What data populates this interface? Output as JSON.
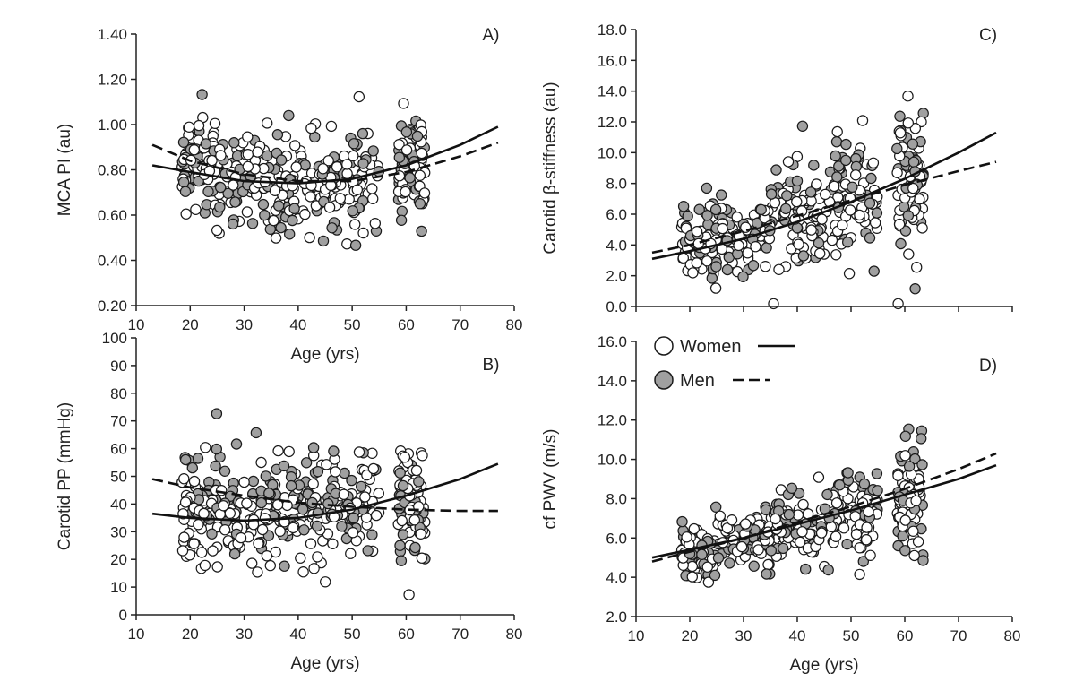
{
  "colors": {
    "women": "#ffffff",
    "men": "#a0a0a0",
    "stroke": "#1a1a1a"
  },
  "legend": [
    {
      "label": "Women",
      "marker": "open-circle",
      "line": "solid"
    },
    {
      "label": "Men",
      "marker": "gray-circle",
      "line": "dashed"
    }
  ],
  "chart_data": [
    {
      "id": "A",
      "panel_label": "A)",
      "type": "scatter",
      "xlabel": "Age (yrs)",
      "ylabel": "MCA PI (au)",
      "xlim": [
        10,
        80
      ],
      "ylim": [
        0.2,
        1.4
      ],
      "xticks": [
        "10",
        "20",
        "30",
        "40",
        "50",
        "60",
        "70",
        "80"
      ],
      "yticks": [
        "0.20",
        "0.40",
        "0.60",
        "0.80",
        "1.00",
        "1.20",
        "1.40"
      ],
      "series": [
        {
          "name": "Women",
          "marker": "open",
          "n": 260,
          "cluster_ranges": [
            [
              18,
              25
            ],
            [
              25,
              35
            ],
            [
              35,
              45
            ],
            [
              45,
              55
            ],
            [
              55,
              65
            ]
          ],
          "y_center": [
            0.82,
            0.78,
            0.74,
            0.76,
            0.84
          ],
          "y_spread": [
            0.09,
            0.1,
            0.1,
            0.11,
            0.11
          ]
        },
        {
          "name": "Men",
          "marker": "filled",
          "n": 170,
          "cluster_ranges": [
            [
              18,
              25
            ],
            [
              25,
              35
            ],
            [
              35,
              45
            ],
            [
              45,
              55
            ],
            [
              55,
              65
            ]
          ],
          "y_center": [
            0.82,
            0.78,
            0.74,
            0.76,
            0.82
          ],
          "y_spread": [
            0.11,
            0.11,
            0.11,
            0.12,
            0.11
          ]
        }
      ],
      "fits": [
        {
          "name": "Women",
          "style": "solid",
          "x": [
            13,
            20,
            30,
            40,
            50,
            60,
            70,
            77
          ],
          "y": [
            0.82,
            0.79,
            0.75,
            0.74,
            0.76,
            0.82,
            0.91,
            0.99
          ]
        },
        {
          "name": "Men",
          "style": "dashed",
          "x": [
            13,
            20,
            30,
            40,
            50,
            60,
            70,
            77
          ],
          "y": [
            0.91,
            0.84,
            0.78,
            0.75,
            0.75,
            0.79,
            0.86,
            0.92
          ]
        }
      ]
    },
    {
      "id": "B",
      "panel_label": "B)",
      "type": "scatter",
      "xlabel": "Age (yrs)",
      "ylabel": "Carotid PP (mmHg)",
      "xlim": [
        10,
        80
      ],
      "ylim": [
        0,
        100
      ],
      "xticks": [
        "10",
        "20",
        "30",
        "40",
        "50",
        "60",
        "70",
        "80"
      ],
      "yticks": [
        "0",
        "10",
        "20",
        "30",
        "40",
        "50",
        "60",
        "70",
        "80",
        "90",
        "100"
      ],
      "series": [
        {
          "name": "Women",
          "marker": "open",
          "n": 260,
          "cluster_ranges": [
            [
              18,
              25
            ],
            [
              25,
              35
            ],
            [
              35,
              45
            ],
            [
              45,
              55
            ],
            [
              55,
              65
            ]
          ],
          "y_center": [
            37,
            35,
            35,
            38,
            41
          ],
          "y_spread": [
            8,
            8,
            9,
            10,
            10
          ]
        },
        {
          "name": "Men",
          "marker": "filled",
          "n": 170,
          "cluster_ranges": [
            [
              18,
              25
            ],
            [
              25,
              35
            ],
            [
              35,
              45
            ],
            [
              45,
              55
            ],
            [
              55,
              65
            ]
          ],
          "y_center": [
            45,
            42,
            40,
            40,
            38
          ],
          "y_spread": [
            9,
            9,
            9,
            10,
            10
          ]
        }
      ],
      "fits": [
        {
          "name": "Women",
          "style": "solid",
          "x": [
            13,
            20,
            30,
            40,
            50,
            60,
            70,
            77
          ],
          "y": [
            36.5,
            35,
            34,
            35,
            38,
            43,
            49,
            54.5
          ]
        },
        {
          "name": "Men",
          "style": "dashed",
          "x": [
            13,
            20,
            30,
            40,
            50,
            60,
            70,
            77
          ],
          "y": [
            49,
            46,
            43,
            40.5,
            39,
            38,
            37.5,
            37.5
          ]
        }
      ]
    },
    {
      "id": "C",
      "panel_label": "C)",
      "type": "scatter",
      "xlabel": "",
      "ylabel": "Carotid β-stiffness (au)",
      "xlim": [
        10,
        80
      ],
      "ylim": [
        0,
        18
      ],
      "xticks": [],
      "yticks": [
        "0.0",
        "2.0",
        "4.0",
        "6.0",
        "8.0",
        "10.0",
        "12.0",
        "14.0",
        "16.0",
        "18.0"
      ],
      "series": [
        {
          "name": "Women",
          "marker": "open",
          "n": 260,
          "cluster_ranges": [
            [
              18,
              25
            ],
            [
              25,
              35
            ],
            [
              35,
              45
            ],
            [
              45,
              55
            ],
            [
              55,
              65
            ]
          ],
          "y_center": [
            3.8,
            4.3,
            5.5,
            7.0,
            8.3
          ],
          "y_spread": [
            1.0,
            1.2,
            1.6,
            2.0,
            2.6
          ]
        },
        {
          "name": "Men",
          "marker": "filled",
          "n": 170,
          "cluster_ranges": [
            [
              18,
              25
            ],
            [
              25,
              35
            ],
            [
              35,
              45
            ],
            [
              45,
              55
            ],
            [
              55,
              65
            ]
          ],
          "y_center": [
            4.5,
            5.0,
            6.2,
            7.3,
            8.5
          ],
          "y_spread": [
            1.1,
            1.3,
            1.6,
            2.0,
            2.6
          ]
        }
      ],
      "fits": [
        {
          "name": "Women",
          "style": "solid",
          "x": [
            13,
            20,
            30,
            40,
            50,
            60,
            70,
            77
          ],
          "y": [
            3.1,
            3.6,
            4.4,
            5.5,
            6.8,
            8.3,
            10.0,
            11.3
          ]
        },
        {
          "name": "Men",
          "style": "dashed",
          "x": [
            13,
            20,
            30,
            40,
            50,
            60,
            70,
            77
          ],
          "y": [
            3.5,
            4.0,
            4.9,
            5.9,
            6.9,
            7.9,
            8.8,
            9.4
          ]
        }
      ]
    },
    {
      "id": "D",
      "panel_label": "D)",
      "type": "scatter",
      "xlabel": "Age (yrs)",
      "ylabel": "cf PWV (m/s)",
      "xlim": [
        10,
        80
      ],
      "ylim": [
        2.0,
        16.0
      ],
      "xticks": [
        "10",
        "20",
        "30",
        "40",
        "50",
        "60",
        "70",
        "80"
      ],
      "yticks": [
        "2.0",
        "4.0",
        "6.0",
        "8.0",
        "10.0",
        "12.0",
        "14.0",
        "16.0"
      ],
      "series": [
        {
          "name": "Women",
          "marker": "open",
          "n": 260,
          "cluster_ranges": [
            [
              18,
              25
            ],
            [
              25,
              35
            ],
            [
              35,
              45
            ],
            [
              45,
              55
            ],
            [
              55,
              65
            ]
          ],
          "y_center": [
            5.3,
            5.8,
            6.4,
            7.1,
            7.8
          ],
          "y_spread": [
            0.6,
            0.6,
            0.8,
            1.0,
            1.2
          ]
        },
        {
          "name": "Men",
          "marker": "filled",
          "n": 170,
          "cluster_ranges": [
            [
              18,
              25
            ],
            [
              25,
              35
            ],
            [
              35,
              45
            ],
            [
              45,
              55
            ],
            [
              55,
              65
            ]
          ],
          "y_center": [
            5.4,
            6.0,
            6.6,
            7.4,
            8.6
          ],
          "y_spread": [
            0.7,
            0.7,
            0.9,
            1.2,
            1.8
          ]
        }
      ],
      "fits": [
        {
          "name": "Women",
          "style": "solid",
          "x": [
            13,
            20,
            30,
            40,
            50,
            60,
            70,
            77
          ],
          "y": [
            5.0,
            5.4,
            6.0,
            6.7,
            7.4,
            8.2,
            9.0,
            9.7
          ]
        },
        {
          "name": "Men",
          "style": "dashed",
          "x": [
            13,
            20,
            30,
            40,
            50,
            60,
            70,
            77
          ],
          "y": [
            4.8,
            5.3,
            6.0,
            6.8,
            7.6,
            8.5,
            9.5,
            10.3
          ]
        }
      ]
    }
  ]
}
